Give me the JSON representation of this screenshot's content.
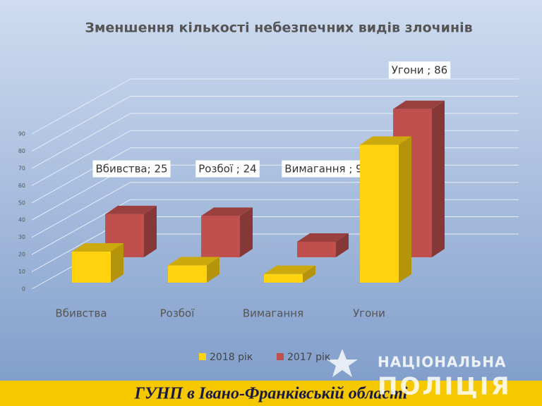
{
  "chart_data": {
    "type": "bar3d",
    "title": "Зменшення кількості небезпечних видів злочинів",
    "categories": [
      "Вбивства",
      "Розбої",
      "Вимагання",
      "Угони"
    ],
    "series": [
      {
        "name": "2018 рік",
        "color": "#ffd30f",
        "values": [
          18,
          10,
          5,
          80
        ]
      },
      {
        "name": "2017 рік",
        "color": "#c0504d",
        "values": [
          25,
          24,
          9,
          86
        ],
        "value_labels": [
          "Вбивства; 25",
          "Розбої ; 24",
          "Вимагання ; 9",
          "Угони ; 86"
        ]
      }
    ],
    "ylim": [
      0,
      90
    ],
    "yticks": [
      0,
      10,
      20,
      30,
      40,
      50,
      60,
      70,
      80,
      90
    ],
    "grid": true,
    "legend": "bottom"
  },
  "footer": "ГУНП в Івано-Франківській області",
  "logo": [
    "НАЦІОНАЛЬНА",
    "ПОЛІЦІЯ"
  ]
}
